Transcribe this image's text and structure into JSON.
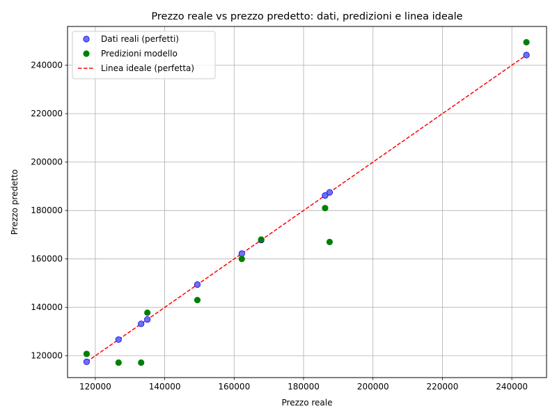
{
  "chart_data": {
    "type": "scatter",
    "title": "Prezzo reale vs prezzo predetto: dati, predizioni e linea ideale",
    "xlabel": "Prezzo reale",
    "ylabel": "Prezzo predetto",
    "xlim": [
      112000,
      250000
    ],
    "ylim": [
      111000,
      256000
    ],
    "xticks": [
      120000,
      140000,
      160000,
      180000,
      200000,
      220000,
      240000
    ],
    "yticks": [
      120000,
      140000,
      160000,
      180000,
      200000,
      220000,
      240000
    ],
    "grid": true,
    "legend_position": "top-left",
    "series": [
      {
        "name": "Dati reali (perfetti)",
        "kind": "scatter",
        "color": "#7070ee",
        "edge_color": "#0000ff",
        "x": [
          117500,
          126700,
          133200,
          135000,
          149400,
          162200,
          167800,
          186200,
          187500,
          244200
        ],
        "y": [
          117500,
          126700,
          133200,
          135000,
          149400,
          162200,
          167800,
          186200,
          187500,
          244200
        ]
      },
      {
        "name": "Predizioni modello",
        "kind": "scatter",
        "color": "#008000",
        "x": [
          117500,
          126700,
          133200,
          135000,
          149400,
          162200,
          167800,
          186200,
          187500,
          244200
        ],
        "y": [
          120800,
          117200,
          117200,
          137800,
          143000,
          160000,
          168000,
          181000,
          167000,
          249500
        ]
      },
      {
        "name": "Linea ideale (perfetta)",
        "kind": "line",
        "style": "dashed",
        "color": "#ff0000",
        "x": [
          117500,
          244200
        ],
        "y": [
          117500,
          244200
        ]
      }
    ]
  }
}
